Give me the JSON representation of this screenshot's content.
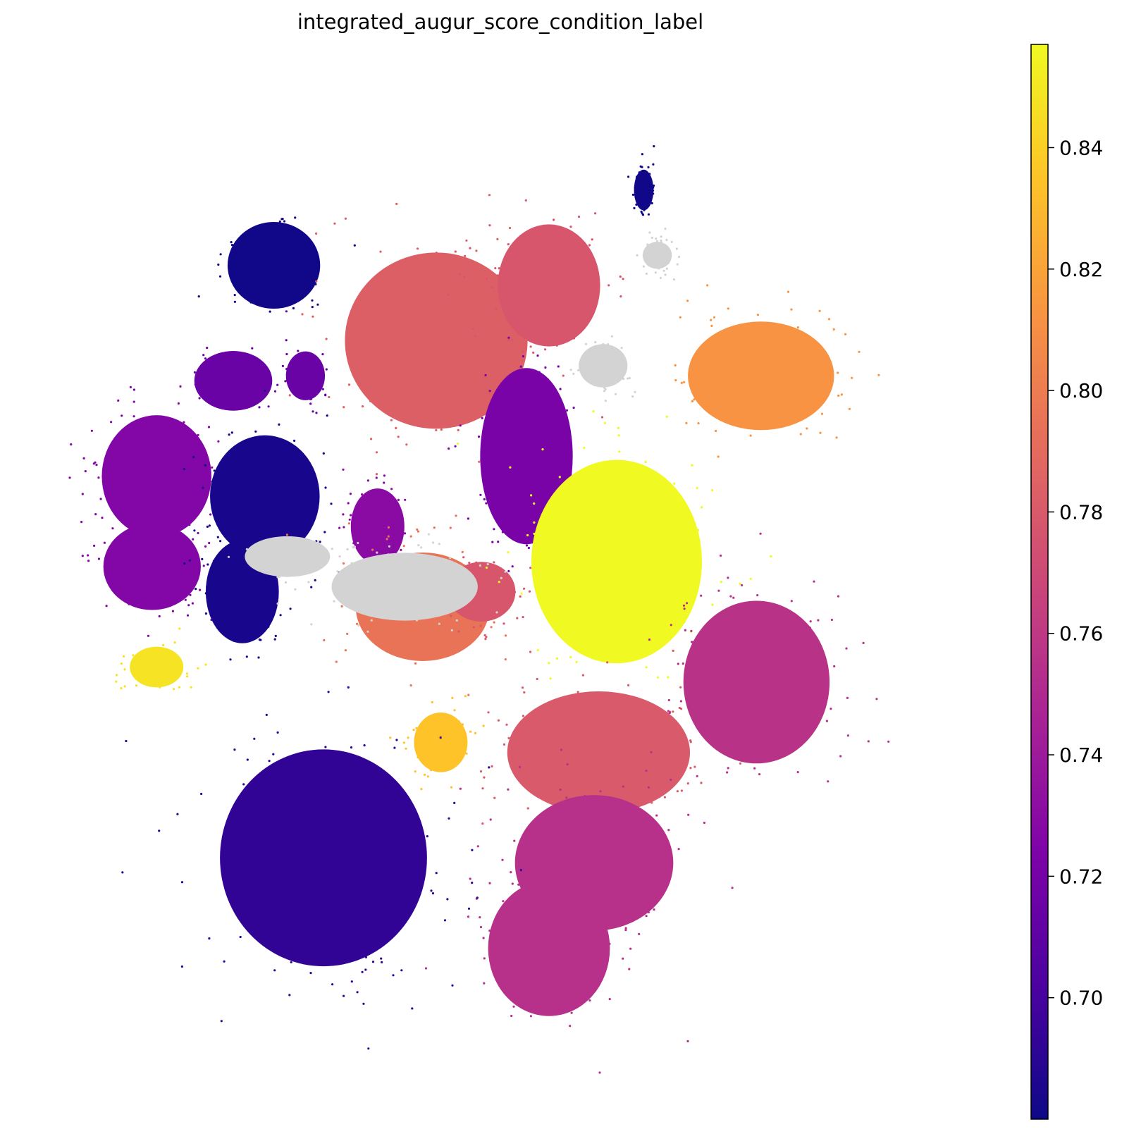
{
  "chart_data": {
    "type": "scatter",
    "title": "integrated_augur_score_condition_label",
    "xlabel": "",
    "ylabel": "",
    "grid": false,
    "axes_visible": false,
    "colormap": "plasma",
    "colorbar": {
      "range": [
        0.68,
        0.857
      ],
      "ticks": [
        0.7,
        0.72,
        0.74,
        0.76,
        0.78,
        0.8,
        0.82,
        0.84
      ],
      "tick_labels": [
        "0.70",
        "0.72",
        "0.74",
        "0.76",
        "0.78",
        "0.80",
        "0.82",
        "0.84"
      ]
    },
    "na_color": "#d3d3d3",
    "xlim": [
      0,
      100
    ],
    "ylim": [
      0,
      100
    ],
    "clusters": [
      {
        "x": 24.5,
        "y": 82.0,
        "sx": 3.8,
        "sy": 3.2,
        "score": 0.681
      },
      {
        "x": 20.0,
        "y": 70.5,
        "sx": 3.2,
        "sy": 2.2,
        "score": 0.715
      },
      {
        "x": 28.0,
        "y": 71.0,
        "sx": 1.6,
        "sy": 1.8,
        "score": 0.715
      },
      {
        "x": 11.5,
        "y": 61.0,
        "sx": 4.5,
        "sy": 4.5,
        "score": 0.727
      },
      {
        "x": 11.0,
        "y": 52.0,
        "sx": 4.0,
        "sy": 3.2,
        "score": 0.727
      },
      {
        "x": 23.5,
        "y": 59.0,
        "sx": 4.5,
        "sy": 4.5,
        "score": 0.684
      },
      {
        "x": 21.0,
        "y": 49.5,
        "sx": 3.0,
        "sy": 3.8,
        "score": 0.684
      },
      {
        "x": 11.5,
        "y": 42.0,
        "sx": 2.2,
        "sy": 1.5,
        "score": 0.848
      },
      {
        "x": 42.5,
        "y": 74.5,
        "sx": 7.5,
        "sy": 6.5,
        "score": 0.783
      },
      {
        "x": 55.0,
        "y": 80.0,
        "sx": 4.2,
        "sy": 4.5,
        "score": 0.778
      },
      {
        "x": 52.5,
        "y": 63.0,
        "sx": 3.8,
        "sy": 6.5,
        "score": 0.722
      },
      {
        "x": 36.0,
        "y": 56.0,
        "sx": 2.2,
        "sy": 2.8,
        "score": 0.73
      },
      {
        "x": 41.0,
        "y": 48.0,
        "sx": 5.5,
        "sy": 4.0,
        "score": 0.795
      },
      {
        "x": 47.5,
        "y": 49.5,
        "sx": 2.8,
        "sy": 2.2,
        "score": 0.778
      },
      {
        "x": 62.5,
        "y": 52.5,
        "sx": 7.0,
        "sy": 7.5,
        "score": 0.857
      },
      {
        "x": 78.5,
        "y": 71.0,
        "sx": 6.0,
        "sy": 4.0,
        "score": 0.812
      },
      {
        "x": 43.0,
        "y": 34.5,
        "sx": 2.2,
        "sy": 2.2,
        "score": 0.835
      },
      {
        "x": 60.5,
        "y": 33.5,
        "sx": 7.5,
        "sy": 4.5,
        "score": 0.78
      },
      {
        "x": 78.0,
        "y": 40.5,
        "sx": 6.0,
        "sy": 6.0,
        "score": 0.756
      },
      {
        "x": 60.0,
        "y": 22.5,
        "sx": 6.5,
        "sy": 5.0,
        "score": 0.755
      },
      {
        "x": 55.0,
        "y": 14.0,
        "sx": 5.0,
        "sy": 5.0,
        "score": 0.755
      },
      {
        "x": 30.0,
        "y": 23.0,
        "sx": 8.5,
        "sy": 8.0,
        "score": 0.693
      },
      {
        "x": 39.0,
        "y": 50.0,
        "sx": 6.0,
        "sy": 2.5,
        "score": null
      },
      {
        "x": 26.0,
        "y": 53.0,
        "sx": 3.5,
        "sy": 1.5,
        "score": null
      },
      {
        "x": 61.0,
        "y": 72.0,
        "sx": 2.0,
        "sy": 1.6,
        "score": null
      },
      {
        "x": 67.0,
        "y": 83.0,
        "sx": 1.2,
        "sy": 1.0,
        "score": null
      },
      {
        "x": 65.5,
        "y": 89.5,
        "sx": 0.8,
        "sy": 1.5,
        "score": 0.681
      }
    ]
  }
}
